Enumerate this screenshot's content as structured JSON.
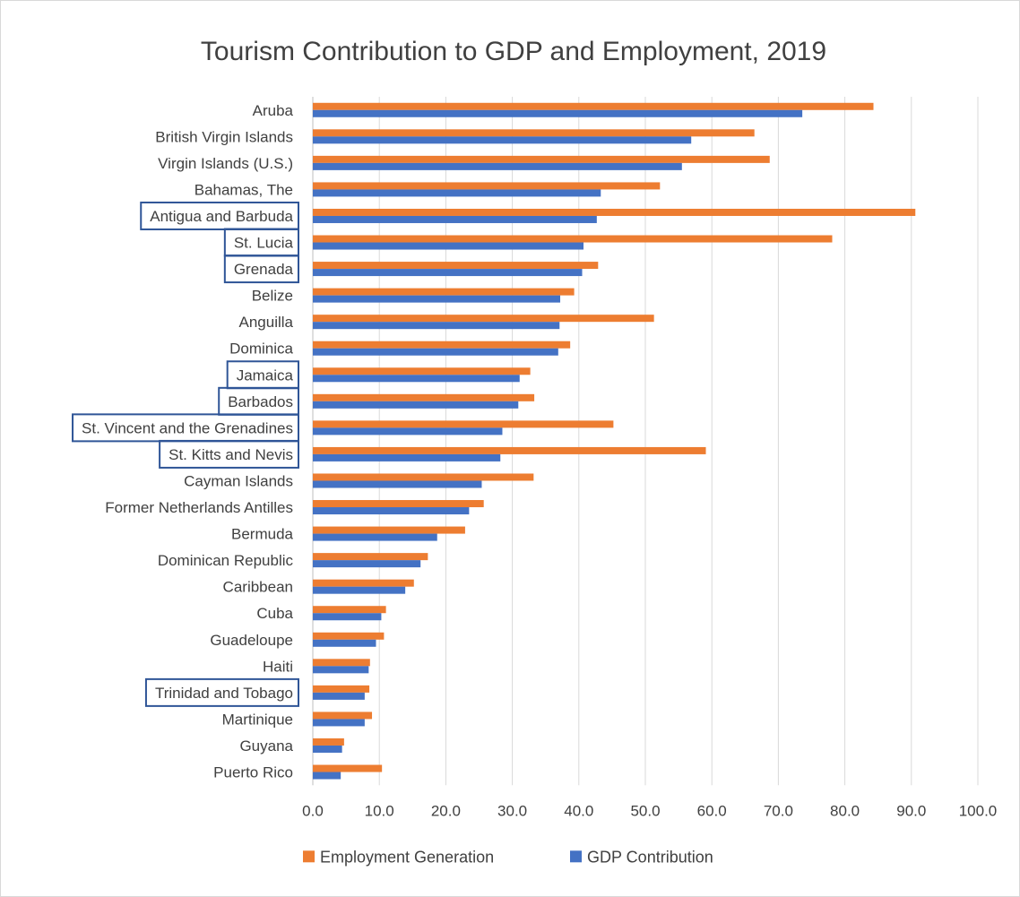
{
  "chart_data": {
    "type": "bar",
    "orientation": "horizontal",
    "title": "Tourism Contribution to GDP and Employment, 2019",
    "xlabel": "",
    "ylabel": "",
    "xlim": [
      0,
      100
    ],
    "x_ticks": [
      "0.0",
      "10.0",
      "20.0",
      "30.0",
      "40.0",
      "50.0",
      "60.0",
      "70.0",
      "80.0",
      "90.0",
      "100.0"
    ],
    "grid": "vertical",
    "legend_position": "bottom",
    "categories": [
      "Aruba",
      "British Virgin Islands",
      "Virgin Islands (U.S.)",
      "Bahamas, The",
      "Antigua and Barbuda",
      "St. Lucia",
      "Grenada",
      "Belize",
      "Anguilla",
      "Dominica",
      "Jamaica",
      "Barbados",
      "St. Vincent and the Grenadines",
      "St. Kitts and Nevis",
      "Cayman Islands",
      "Former Netherlands Antilles",
      "Bermuda",
      "Dominican Republic",
      "Caribbean",
      "Cuba",
      "Guadeloupe",
      "Haiti",
      "Trinidad and Tobago",
      "Martinique",
      "Guyana",
      "Puerto Rico"
    ],
    "highlighted_categories": [
      "Antigua and Barbuda",
      "St. Lucia",
      "Grenada",
      "Jamaica",
      "Barbados",
      "St. Vincent and the Grenadines",
      "St. Kitts and Nevis",
      "Trinidad and Tobago"
    ],
    "series": [
      {
        "name": "Employment Generation",
        "color": "#ED7D31",
        "values": [
          84.3,
          66.4,
          68.7,
          52.2,
          90.6,
          78.1,
          42.9,
          39.3,
          51.3,
          38.7,
          32.7,
          33.3,
          45.2,
          59.1,
          33.2,
          25.7,
          22.9,
          17.3,
          15.2,
          11.0,
          10.7,
          8.6,
          8.5,
          8.9,
          4.7,
          10.4
        ]
      },
      {
        "name": "GDP Contribution",
        "color": "#4472C4",
        "values": [
          73.6,
          56.9,
          55.5,
          43.3,
          42.7,
          40.7,
          40.5,
          37.2,
          37.1,
          36.9,
          31.1,
          30.9,
          28.5,
          28.2,
          25.4,
          23.5,
          18.7,
          16.2,
          13.9,
          10.3,
          9.5,
          8.4,
          7.8,
          7.8,
          4.4,
          4.2
        ]
      }
    ]
  },
  "colors": {
    "highlight_box": "#2F5597",
    "gridline": "#D9D9D9",
    "text": "#404040"
  }
}
